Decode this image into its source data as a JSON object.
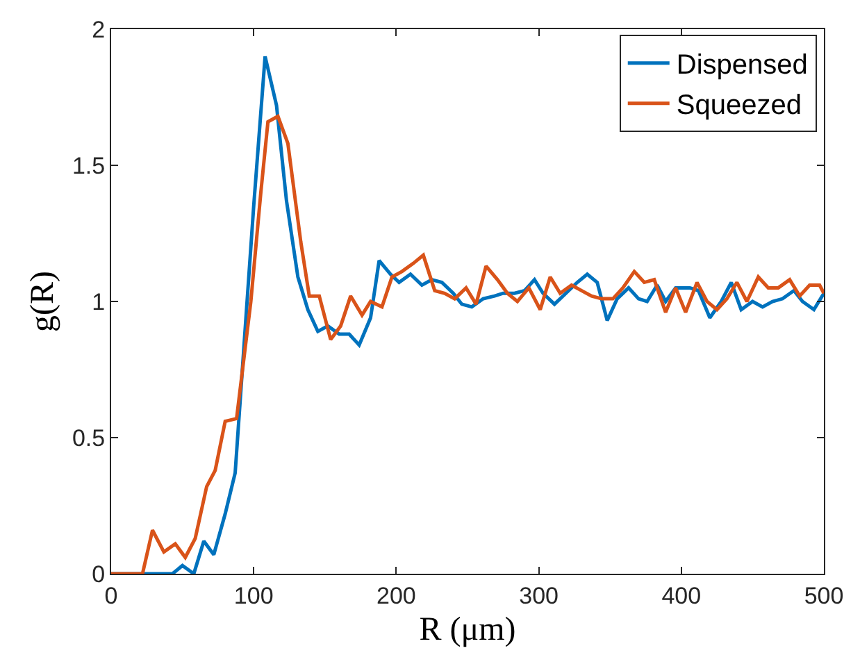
{
  "chart_data": {
    "type": "line",
    "xlabel": "R (μm)",
    "ylabel": "g(R)",
    "xlim": [
      0,
      500
    ],
    "ylim": [
      0,
      2
    ],
    "xticks": [
      0,
      100,
      200,
      300,
      400,
      500
    ],
    "yticks": [
      0,
      0.5,
      1,
      1.5,
      2
    ],
    "grid": false,
    "legend": "top right",
    "marker": "none",
    "line_style": "solid",
    "series": [
      {
        "name": "Dispensed",
        "color": "#0072bd",
        "x": [
          0,
          10,
          20,
          30,
          43,
          50,
          58,
          65,
          72,
          80,
          87,
          100,
          108,
          116,
          123,
          131,
          138,
          145,
          152,
          160,
          167,
          174,
          182,
          188,
          196,
          202,
          210,
          218,
          225,
          232,
          240,
          246,
          253,
          261,
          269,
          275,
          283,
          290,
          297,
          303,
          311,
          319,
          327,
          334,
          341,
          348,
          355,
          363,
          370,
          376,
          383,
          389,
          396,
          406,
          412,
          420,
          428,
          435,
          442,
          450,
          457,
          464,
          471,
          479,
          485,
          493,
          500
        ],
        "values": [
          0,
          0,
          0,
          0,
          0,
          0.03,
          0,
          0.12,
          0.07,
          0.22,
          0.37,
          1.35,
          1.9,
          1.72,
          1.37,
          1.09,
          0.97,
          0.89,
          0.91,
          0.88,
          0.88,
          0.84,
          0.94,
          1.15,
          1.1,
          1.07,
          1.1,
          1.06,
          1.08,
          1.07,
          1.03,
          0.99,
          0.98,
          1.01,
          1.02,
          1.03,
          1.03,
          1.04,
          1.08,
          1.03,
          0.99,
          1.03,
          1.07,
          1.1,
          1.07,
          0.93,
          1.01,
          1.05,
          1.01,
          1,
          1.06,
          1,
          1.05,
          1.05,
          1.04,
          0.94,
          1,
          1.07,
          0.97,
          1,
          0.98,
          1,
          1.01,
          1.04,
          1,
          0.97,
          1.03
        ]
      },
      {
        "name": "Squeezed",
        "color": "#d95319",
        "x": [
          0,
          7.5,
          15,
          22,
          29,
          37,
          45,
          52,
          59,
          67,
          73,
          80,
          88,
          98,
          105,
          110,
          117,
          124,
          133,
          139,
          146,
          154,
          161,
          168,
          176,
          182,
          190,
          197,
          204,
          212,
          219,
          227,
          234,
          241,
          249,
          256,
          263,
          271,
          278,
          285,
          293,
          301,
          308,
          315,
          323,
          330,
          337,
          344,
          352,
          359,
          367,
          374,
          381,
          389,
          396,
          403,
          411,
          418,
          425,
          432,
          439,
          446,
          454,
          461,
          468,
          476,
          483,
          490,
          497,
          500
        ],
        "values": [
          0,
          0,
          0,
          0,
          0.16,
          0.08,
          0.11,
          0.06,
          0.13,
          0.32,
          0.38,
          0.56,
          0.57,
          1.0,
          1.4,
          1.66,
          1.68,
          1.58,
          1.22,
          1.02,
          1.02,
          0.86,
          0.91,
          1.02,
          0.95,
          1,
          0.98,
          1.09,
          1.11,
          1.14,
          1.17,
          1.04,
          1.03,
          1.01,
          1.05,
          0.99,
          1.13,
          1.08,
          1.03,
          1,
          1.05,
          0.97,
          1.09,
          1.03,
          1.06,
          1.04,
          1.02,
          1.01,
          1.01,
          1.05,
          1.11,
          1.07,
          1.08,
          0.96,
          1.05,
          0.96,
          1.07,
          1,
          0.97,
          1.01,
          1.07,
          1,
          1.09,
          1.05,
          1.05,
          1.08,
          1.02,
          1.06,
          1.06,
          1.03
        ]
      }
    ]
  }
}
